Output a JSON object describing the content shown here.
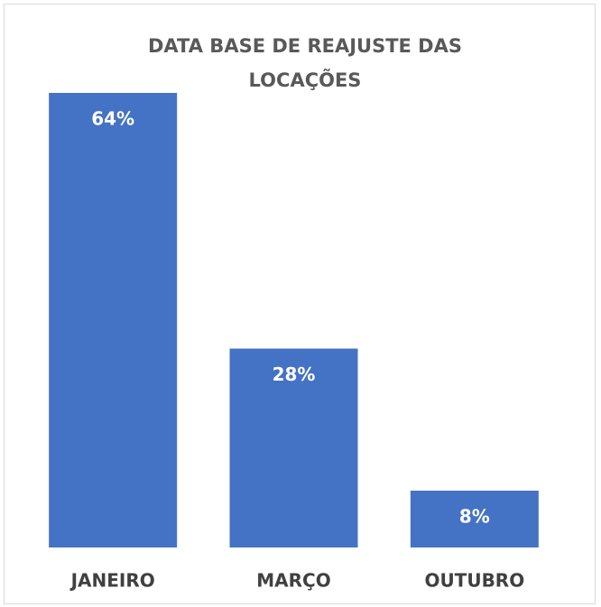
{
  "chart_data": {
    "type": "bar",
    "title": "DATA BASE DE REAJUSTE DAS LOCAÇÕES",
    "categories": [
      "JANEIRO",
      "MARÇO",
      "OUTUBRO"
    ],
    "values": [
      64,
      28,
      8
    ],
    "value_labels": [
      "64%",
      "28%",
      "8%"
    ],
    "color": "#4472c4"
  }
}
